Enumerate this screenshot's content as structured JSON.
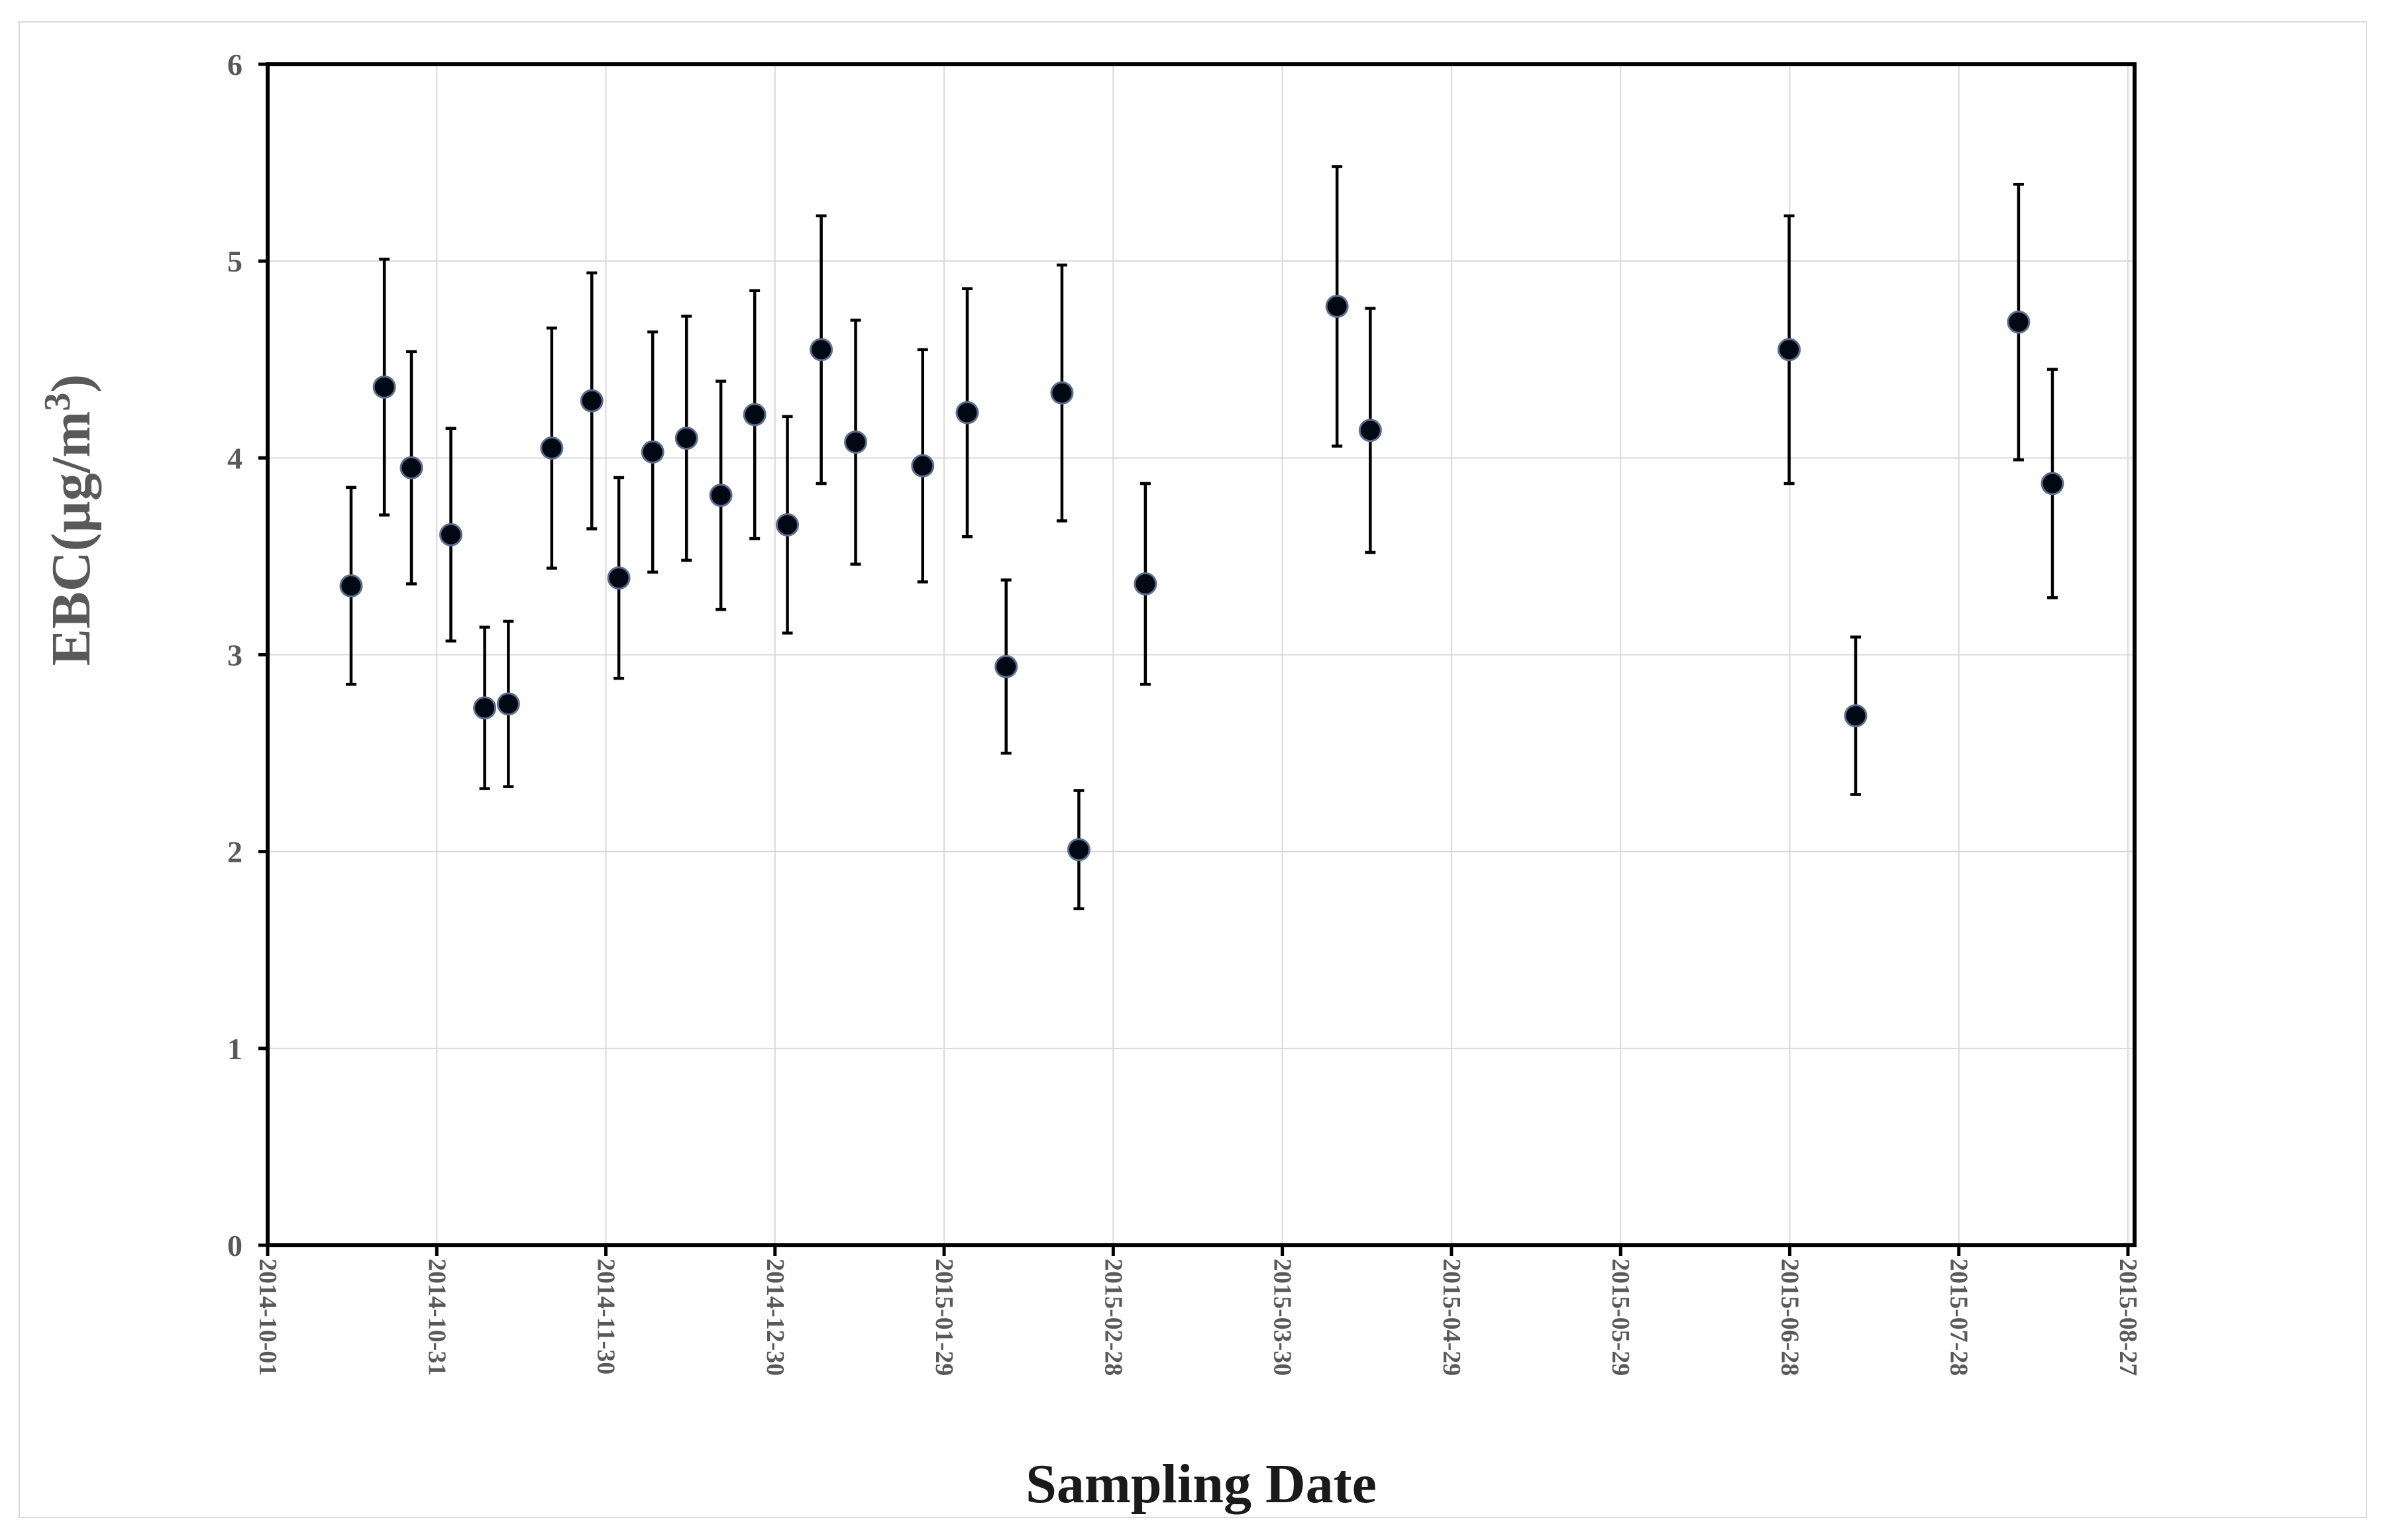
{
  "chart_data": {
    "type": "scatter",
    "title": "",
    "xlabel": "Sampling Date",
    "ylabel": "EBC(µg/m",
    "ylabel_superscript": "3",
    "ylabel_close": ")",
    "ylim": [
      0,
      6
    ],
    "yticks": [
      0,
      1,
      2,
      3,
      4,
      5,
      6
    ],
    "xlim_days": [
      0,
      330
    ],
    "xticks": [
      {
        "label": "2014-10-01",
        "day": 0
      },
      {
        "label": "2014-10-31",
        "day": 30
      },
      {
        "label": "2014-11-30",
        "day": 60
      },
      {
        "label": "2014-12-30",
        "day": 90
      },
      {
        "label": "2015-01-29",
        "day": 120
      },
      {
        "label": "2015-02-28",
        "day": 150
      },
      {
        "label": "2015-03-30",
        "day": 180
      },
      {
        "label": "2015-04-29",
        "day": 210
      },
      {
        "label": "2015-05-29",
        "day": 240
      },
      {
        "label": "2015-06-28",
        "day": 270
      },
      {
        "label": "2015-07-28",
        "day": 300
      },
      {
        "label": "2015-08-27",
        "day": 330
      }
    ],
    "grid": true,
    "legend": "none",
    "series": [
      {
        "name": "EBC",
        "points": [
          {
            "day": 14.8,
            "y": 3.35,
            "err": 0.5
          },
          {
            "day": 20.7,
            "y": 4.36,
            "err": 0.65
          },
          {
            "day": 25.5,
            "y": 3.95,
            "err": 0.59
          },
          {
            "day": 32.5,
            "y": 3.61,
            "err": 0.54
          },
          {
            "day": 38.5,
            "y": 2.73,
            "err": 0.41
          },
          {
            "day": 42.7,
            "y": 2.75,
            "err": 0.42
          },
          {
            "day": 50.4,
            "y": 4.05,
            "err": 0.61
          },
          {
            "day": 57.5,
            "y": 4.29,
            "err": 0.65
          },
          {
            "day": 62.3,
            "y": 3.39,
            "err": 0.51
          },
          {
            "day": 68.3,
            "y": 4.03,
            "err": 0.61
          },
          {
            "day": 74.3,
            "y": 4.1,
            "err": 0.62
          },
          {
            "day": 80.4,
            "y": 3.81,
            "err": 0.58
          },
          {
            "day": 86.4,
            "y": 4.22,
            "err": 0.63
          },
          {
            "day": 92.2,
            "y": 3.66,
            "err": 0.55
          },
          {
            "day": 98.2,
            "y": 4.55,
            "err": 0.68
          },
          {
            "day": 104.3,
            "y": 4.08,
            "err": 0.62
          },
          {
            "day": 116.2,
            "y": 3.96,
            "err": 0.59
          },
          {
            "day": 124.1,
            "y": 4.23,
            "err": 0.63
          },
          {
            "day": 131.0,
            "y": 2.94,
            "err": 0.44
          },
          {
            "day": 140.9,
            "y": 4.33,
            "err": 0.65
          },
          {
            "day": 143.9,
            "y": 2.01,
            "err": 0.3
          },
          {
            "day": 155.7,
            "y": 3.36,
            "err": 0.51
          },
          {
            "day": 189.7,
            "y": 4.77,
            "err": 0.71
          },
          {
            "day": 195.6,
            "y": 4.14,
            "err": 0.62
          },
          {
            "day": 269.9,
            "y": 4.55,
            "err": 0.68
          },
          {
            "day": 281.7,
            "y": 2.69,
            "err": 0.4
          },
          {
            "day": 310.6,
            "y": 4.69,
            "err": 0.7
          },
          {
            "day": 316.6,
            "y": 3.87,
            "err": 0.58
          }
        ]
      }
    ]
  }
}
